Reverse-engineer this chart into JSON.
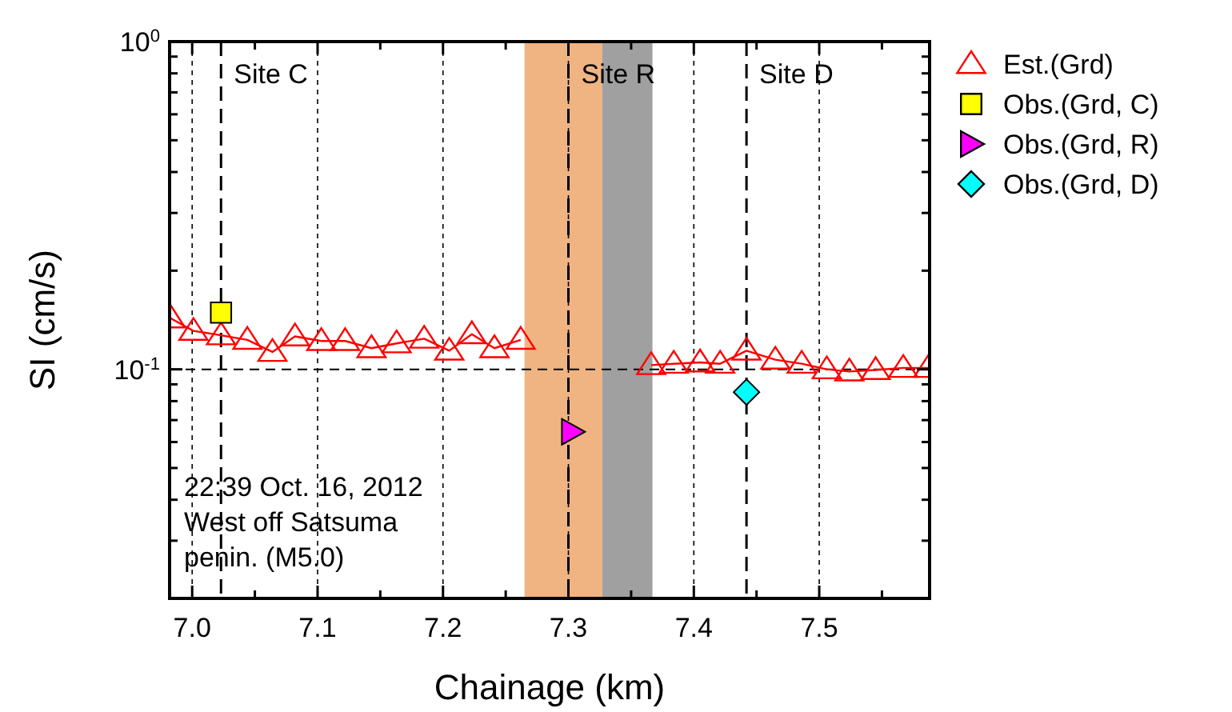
{
  "chart_data": {
    "type": "line",
    "xlabel": "Chainage (km)",
    "ylabel": "SI (cm/s)",
    "xlim": [
      6.982,
      7.588
    ],
    "ylim": [
      0.02,
      1
    ],
    "xticks": [
      {
        "value": 7,
        "label": "7.0"
      },
      7.1,
      7.2,
      7.3,
      7.4,
      7.5,
      {
        "value": 7.05,
        "label": null
      },
      {
        "value": 7.15,
        "label": null
      },
      {
        "value": 7.25,
        "label": null
      },
      {
        "value": 7.35,
        "label": null
      },
      {
        "value": 7.45,
        "label": null
      },
      {
        "value": 7.55,
        "label": null
      }
    ],
    "yticks": [
      {
        "value": 1,
        "label": "10$^{0}$"
      },
      {
        "value": 0.1,
        "label": "10$^{-1}$"
      },
      {
        "value": 0.02,
        "label": null
      },
      {
        "value": 0.03,
        "label": null
      },
      {
        "value": 0.04,
        "label": null
      },
      {
        "value": 0.05,
        "label": null
      },
      {
        "value": 0.06,
        "label": null
      },
      {
        "value": 0.07,
        "label": null
      },
      {
        "value": 0.08,
        "label": null
      },
      {
        "value": 0.09,
        "label": null
      },
      {
        "value": 0.2,
        "label": null
      },
      {
        "value": 0.3,
        "label": null
      },
      {
        "value": 0.4,
        "label": null
      },
      {
        "value": 0.5,
        "label": null
      },
      {
        "value": 0.6,
        "label": null
      },
      {
        "value": 0.7,
        "label": null
      },
      {
        "value": 0.8,
        "label": null
      },
      {
        "value": 0.9,
        "label": null
      }
    ],
    "log": "y",
    "grid": "x",
    "legend": "right",
    "series": [
      {
        "name": "Est.(Grd)",
        "marker": "triangle",
        "color": "#ff0000",
        "x": [
          6.983,
          7.001,
          7.023,
          7.044,
          7.064,
          7.082,
          7.103,
          7.122,
          7.143,
          7.163,
          7.185,
          7.205,
          7.223,
          7.241,
          7.262,
          7.31,
          7.366,
          7.384,
          7.405,
          7.421,
          7.442,
          7.465,
          7.486,
          7.506,
          7.524,
          7.545,
          7.567,
          7.587
        ],
        "values": [
          0.143,
          0.131,
          0.127,
          0.123,
          0.113,
          0.126,
          0.122,
          0.122,
          0.116,
          0.12,
          0.124,
          0.114,
          0.128,
          0.116,
          0.123,
          null,
          0.103,
          0.104,
          0.105,
          0.104,
          0.114,
          0.107,
          0.104,
          0.1,
          0.0985,
          0.0995,
          0.101,
          0.101
        ]
      },
      {
        "name": "Obs.(Grd, C)",
        "type": "scatter",
        "marker": "square",
        "color": "#ffff00",
        "x": [
          7.023
        ],
        "values": [
          0.149
        ]
      },
      {
        "name": "Obs.(Grd, R)",
        "type": "scatter",
        "marker": "triangle-right",
        "color": "#ff00ff",
        "x": [
          7.303
        ],
        "values": [
          0.0645
        ]
      },
      {
        "name": "Obs.(Grd, D)",
        "type": "scatter",
        "marker": "diamond",
        "color": "#00ffff",
        "x": [
          7.442
        ],
        "values": [
          0.0852
        ]
      }
    ],
    "ref_lines": [
      {
        "axis": "y",
        "value": 0.1,
        "line_style": "dashed",
        "color": "#000000"
      },
      {
        "axis": "x",
        "value": 7.023,
        "label": "Site C",
        "line_style": "dashed",
        "color": "#000000"
      },
      {
        "axis": "x",
        "value": 7.3,
        "label": "Site R",
        "line_style": "dashed",
        "color": "#000000"
      },
      {
        "axis": "x",
        "value": 7.442,
        "label": "Site D",
        "line_style": "dashed",
        "color": "#000000"
      }
    ],
    "bands": [
      {
        "axis": "x",
        "from": 7.265,
        "to": 7.327,
        "color": "#f0b482"
      },
      {
        "axis": "x",
        "from": 7.327,
        "to": 7.367,
        "color": "#a0a0a0"
      }
    ],
    "annotations": [
      "22:39 Oct. 16, 2012\nWest off Satsuma\npenin. (M5.0)"
    ]
  }
}
